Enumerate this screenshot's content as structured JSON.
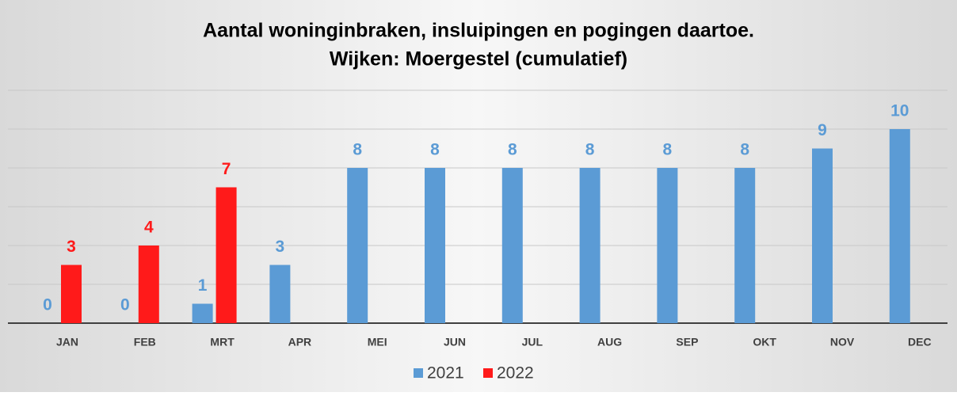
{
  "chart_data": {
    "type": "bar",
    "title": [
      "Aantal woninginbraken, insluipingen en pogingen daartoe.",
      "Wijken: Moergestel (cumulatief)"
    ],
    "categories": [
      "JAN",
      "FEB",
      "MRT",
      "APR",
      "MEI",
      "JUN",
      "JUL",
      "AUG",
      "SEP",
      "OKT",
      "NOV",
      "DEC"
    ],
    "series": [
      {
        "name": "2021",
        "color": "#5b9bd5",
        "values": [
          0,
          0,
          1,
          3,
          8,
          8,
          8,
          8,
          8,
          8,
          9,
          10
        ]
      },
      {
        "name": "2022",
        "color": "#ff1a1a",
        "values": [
          3,
          4,
          7,
          null,
          null,
          null,
          null,
          null,
          null,
          null,
          null,
          null
        ]
      }
    ],
    "ylim": [
      0,
      12
    ],
    "yticks": [
      0,
      2,
      4,
      6,
      8,
      10,
      12
    ],
    "grid": true,
    "legend": "bottom"
  }
}
